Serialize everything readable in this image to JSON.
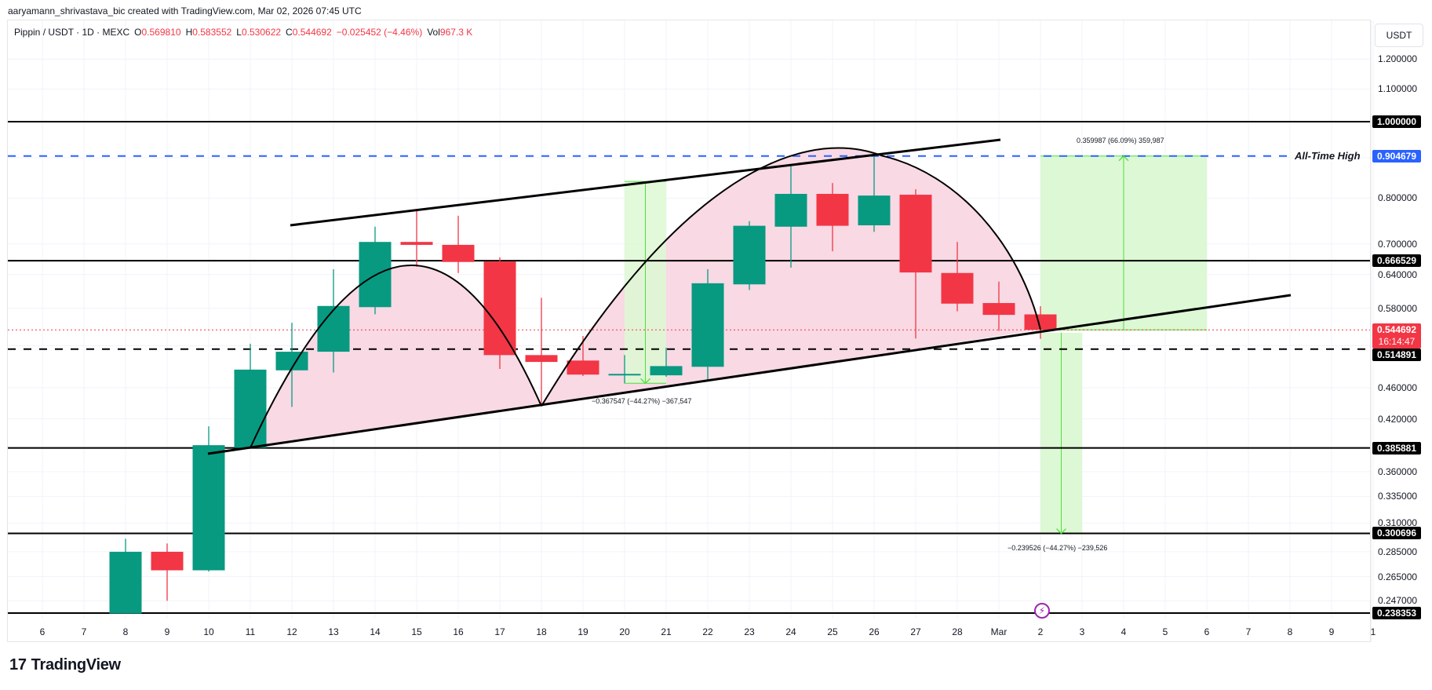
{
  "header": {
    "credit": "aaryamann_shrivastava_bic created with TradingView.com, Mar 02, 2026 07:45 UTC",
    "symbol": "Pippin / USDT · 1D · MEXC",
    "o_label": "O",
    "o_value": "0.569810",
    "h_label": "H",
    "h_value": "0.583552",
    "l_label": "L",
    "l_value": "0.530622",
    "c_label": "C",
    "c_value": "0.544692",
    "change": "−0.025452 (−4.46%)",
    "vol_label": "Vol",
    "vol_value": "967.3 K"
  },
  "price_axis": {
    "unit_button": "USDT",
    "ticks": [
      "1.200000",
      "1.100000",
      "0.800000",
      "0.700000",
      "0.640000",
      "0.580000",
      "0.460000",
      "0.420000",
      "0.360000",
      "0.335000",
      "0.310000",
      "0.285000",
      "0.265000",
      "0.247000"
    ],
    "tags": {
      "level_1": "1.000000",
      "ath": "0.904679",
      "level_2": "0.666529",
      "current_price": "0.544692",
      "countdown": "16:14:47",
      "level_3": "0.514891",
      "level_4": "0.385881",
      "level_5": "0.300696",
      "level_6": "0.238353"
    }
  },
  "time_axis": [
    "6",
    "7",
    "8",
    "9",
    "10",
    "11",
    "12",
    "13",
    "14",
    "15",
    "16",
    "17",
    "18",
    "19",
    "20",
    "21",
    "22",
    "23",
    "24",
    "25",
    "26",
    "27",
    "28",
    "Mar",
    "2",
    "3",
    "4",
    "5",
    "6",
    "7",
    "8",
    "9",
    "1"
  ],
  "annotations": {
    "ath_label": "All-Time High",
    "measure_up": "0.359987 (66.09%) 359,987",
    "measure_down_1": "−0.367547 (−44.27%) −367,547",
    "measure_down_2": "−0.239526 (−44.27%) −239,526"
  },
  "brand": {
    "logo": "17",
    "name": "TradingView"
  },
  "colors": {
    "up": "#089981",
    "down": "#F23645",
    "ath_line": "#2962FF",
    "pattern_fill": "#F8D7E3",
    "measure_fill": "#DDF8D4",
    "measure_line": "#4CE03A"
  },
  "chart_data": {
    "type": "candlestick",
    "title": "Pippin / USDT · 1D · MEXC",
    "xlabel": "",
    "ylabel": "USDT",
    "yscale": "log",
    "ylim": [
      0.235,
      1.25
    ],
    "categories": [
      "Feb 8",
      "Feb 9",
      "Feb 10",
      "Feb 11",
      "Feb 12",
      "Feb 13",
      "Feb 14",
      "Feb 15",
      "Feb 16",
      "Feb 17",
      "Feb 18",
      "Feb 19",
      "Feb 20",
      "Feb 21",
      "Feb 22",
      "Feb 23",
      "Feb 24",
      "Feb 25",
      "Feb 26",
      "Feb 27",
      "Feb 28",
      "Mar 1",
      "Mar 2"
    ],
    "open": [
      0.238,
      0.285,
      0.27,
      0.386,
      0.484,
      0.511,
      0.582,
      0.704,
      0.698,
      0.665,
      0.506,
      0.498,
      0.479,
      0.477,
      0.489,
      0.622,
      0.736,
      0.81,
      0.739,
      0.808,
      0.643,
      0.589,
      0.5698
    ],
    "high": [
      0.296,
      0.292,
      0.411,
      0.523,
      0.556,
      0.65,
      0.736,
      0.774,
      0.76,
      0.673,
      0.598,
      0.535,
      0.506,
      0.517,
      0.65,
      0.748,
      0.878,
      0.836,
      0.905,
      0.821,
      0.704,
      0.627,
      0.5836
    ],
    "low": [
      0.238,
      0.247,
      0.269,
      0.386,
      0.435,
      0.481,
      0.57,
      0.655,
      0.643,
      0.486,
      0.436,
      0.476,
      0.466,
      0.475,
      0.471,
      0.612,
      0.653,
      0.685,
      0.725,
      0.531,
      0.575,
      0.543,
      0.5306
    ],
    "close": [
      0.285,
      0.27,
      0.389,
      0.485,
      0.511,
      0.584,
      0.704,
      0.698,
      0.664,
      0.506,
      0.496,
      0.478,
      0.479,
      0.49,
      0.624,
      0.738,
      0.81,
      0.738,
      0.806,
      0.644,
      0.588,
      0.569,
      0.5447
    ],
    "horizontal_levels": [
      1.0,
      0.904679,
      0.666529,
      0.514891,
      0.385881,
      0.300696,
      0.238353
    ],
    "annotations": [
      "All-Time High 0.904679",
      "Double top / rising wedge pattern",
      "0.359987 (66.09%) 359,987",
      "−0.367547 (−44.27%) −367,547",
      "−0.239526 (−44.27%) −239,526"
    ],
    "grid": true
  }
}
